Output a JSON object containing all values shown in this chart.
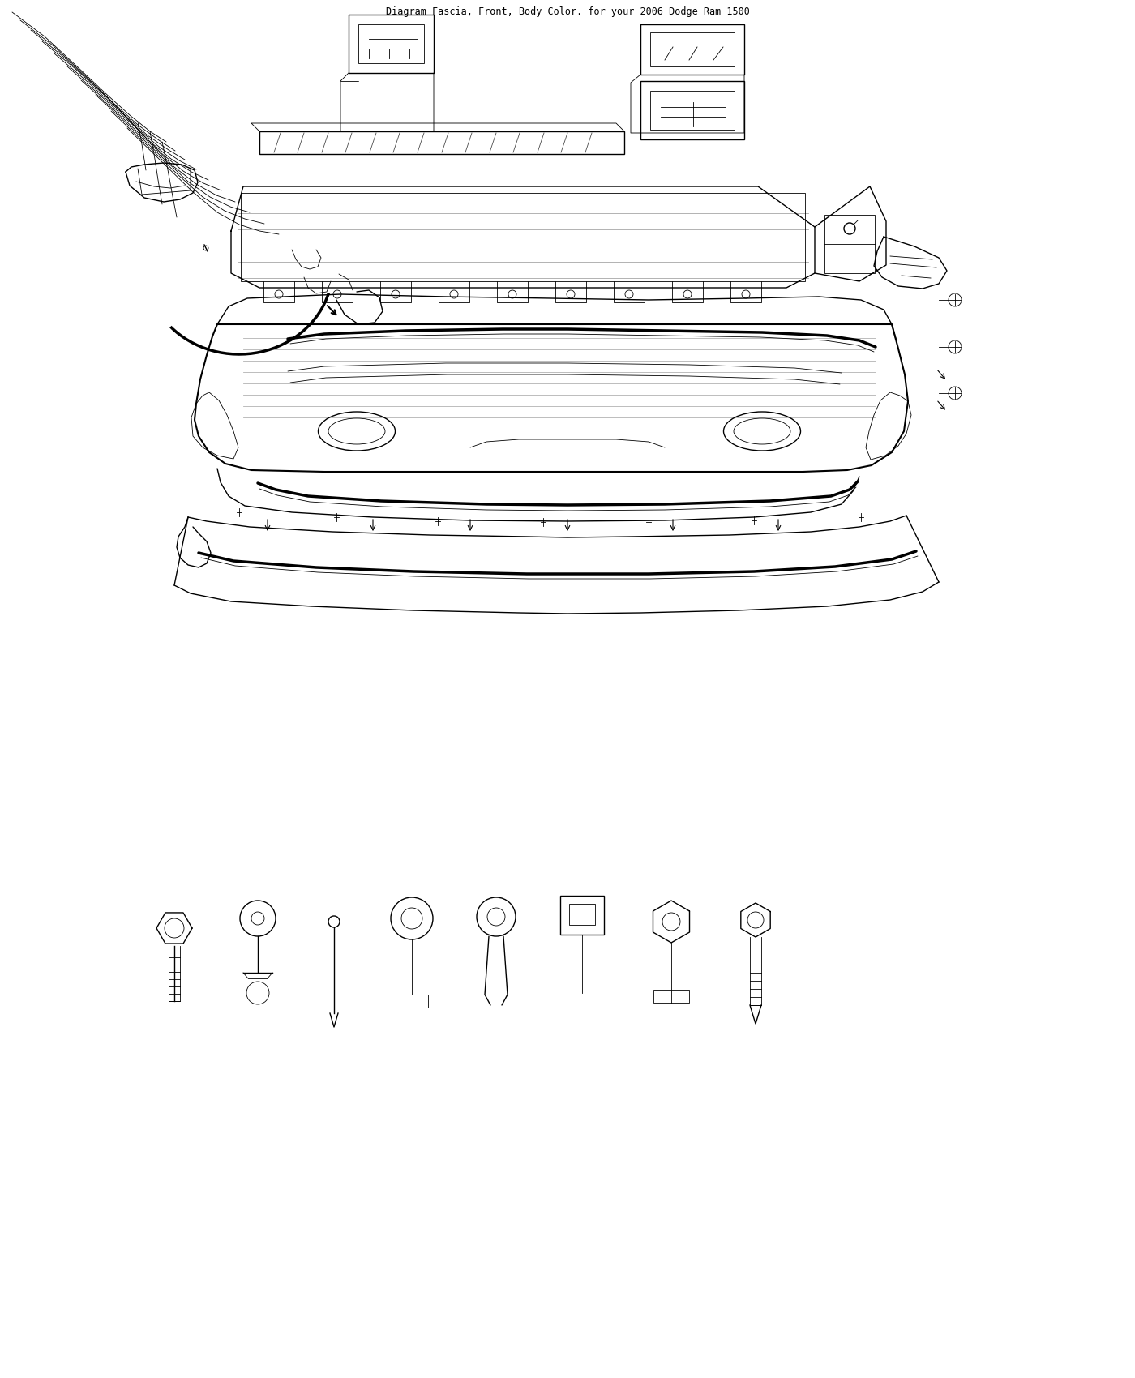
{
  "title": "Diagram Fascia, Front, Body Color. for your 2006 Dodge Ram 1500",
  "bg_color": "#ffffff",
  "line_color": "#000000",
  "fig_width": 14.0,
  "fig_height": 17.0,
  "dpi": 100
}
